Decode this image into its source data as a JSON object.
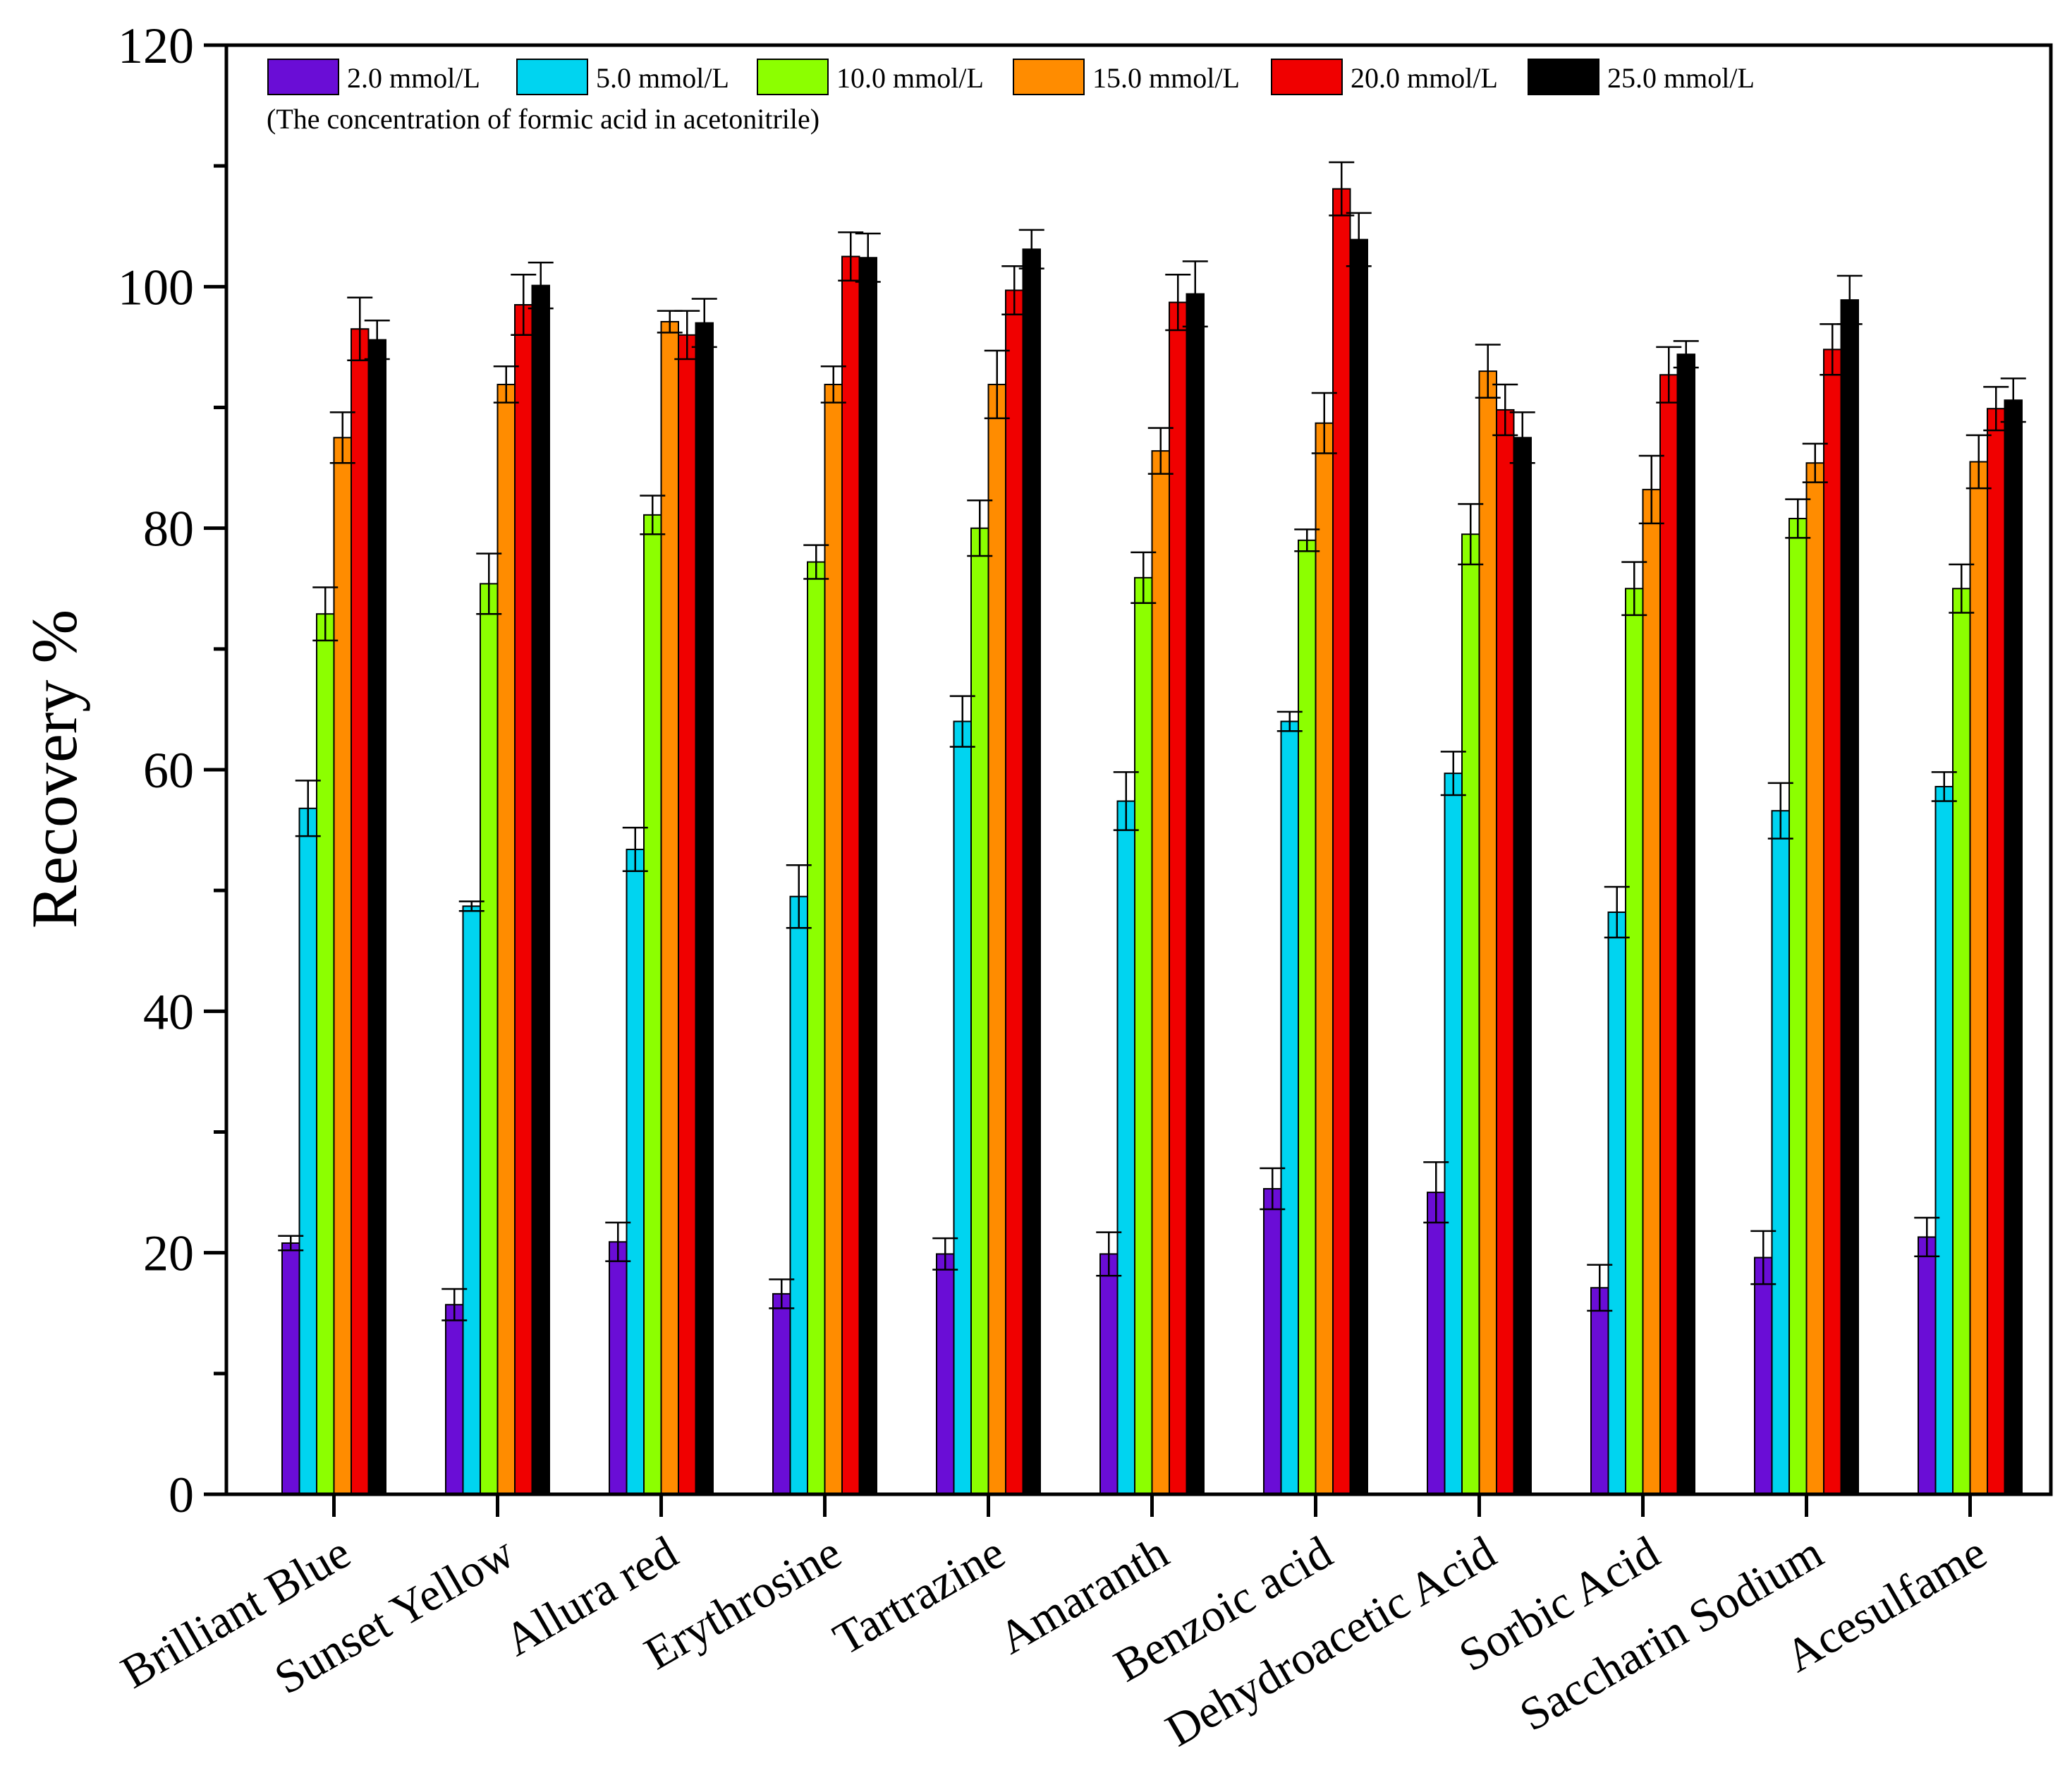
{
  "chart_data": {
    "type": "bar",
    "title": "",
    "xlabel": "",
    "ylabel": "Recovery %",
    "ylim": [
      0,
      120
    ],
    "yticks": [
      0,
      20,
      40,
      60,
      80,
      100,
      120
    ],
    "grid": false,
    "legend_position": "top-left",
    "legend_note": "(The concentration of formic acid in acetonitrile)",
    "categories": [
      "Brilliant Blue",
      "Sunset Yellow",
      "Allura red",
      "Erythrosine",
      "Tartrazine",
      "Amaranth",
      "Benzoic acid",
      "Dehydroacetic Acid",
      "Sorbic Acid",
      "Saccharin Sodium",
      "Acesulfame"
    ],
    "series": [
      {
        "name": "2.0 mmol/L",
        "color": "#6a0dd6",
        "values": [
          20.8,
          15.7,
          20.9,
          16.6,
          19.9,
          19.9,
          25.3,
          25.0,
          17.1,
          19.6,
          21.3
        ],
        "errors": [
          0.6,
          1.3,
          1.6,
          1.2,
          1.3,
          1.8,
          1.7,
          2.5,
          1.9,
          2.2,
          1.6
        ]
      },
      {
        "name": "5.0 mmol/L",
        "color": "#00d4f0",
        "values": [
          56.8,
          48.7,
          53.4,
          49.5,
          64.0,
          57.4,
          64.0,
          59.7,
          48.2,
          56.6,
          58.6
        ],
        "errors": [
          2.3,
          0.4,
          1.8,
          2.6,
          2.1,
          2.4,
          0.8,
          1.8,
          2.1,
          2.3,
          1.2
        ]
      },
      {
        "name": "10.0 mmol/L",
        "color": "#8cff00",
        "values": [
          72.9,
          75.4,
          81.1,
          77.2,
          80.0,
          75.9,
          79.0,
          79.5,
          75.0,
          80.8,
          75.0
        ],
        "errors": [
          2.2,
          2.5,
          1.6,
          1.4,
          2.3,
          2.1,
          0.9,
          2.5,
          2.2,
          1.6,
          2.0
        ]
      },
      {
        "name": "15.0 mmol/L",
        "color": "#ff8c00",
        "values": [
          87.5,
          91.9,
          97.1,
          91.9,
          91.9,
          86.4,
          88.7,
          93.0,
          83.2,
          85.4,
          85.5
        ],
        "errors": [
          2.1,
          1.5,
          0.9,
          1.5,
          2.8,
          1.9,
          2.5,
          2.2,
          2.8,
          1.6,
          2.2
        ]
      },
      {
        "name": "20.0 mmol/L",
        "color": "#f00000",
        "values": [
          96.5,
          98.5,
          96.0,
          102.5,
          99.7,
          98.7,
          108.1,
          89.8,
          92.7,
          94.8,
          89.9
        ],
        "errors": [
          2.6,
          2.5,
          2.0,
          2.0,
          2.0,
          2.3,
          2.2,
          2.1,
          2.3,
          2.1,
          1.8
        ]
      },
      {
        "name": "25.0 mmol/L",
        "color": "#000000",
        "values": [
          95.6,
          100.1,
          97.0,
          102.4,
          103.1,
          99.4,
          103.9,
          87.5,
          94.4,
          98.9,
          90.6
        ],
        "errors": [
          1.6,
          1.9,
          2.0,
          2.0,
          1.6,
          2.7,
          2.2,
          2.1,
          1.1,
          2.0,
          1.8
        ]
      }
    ]
  }
}
